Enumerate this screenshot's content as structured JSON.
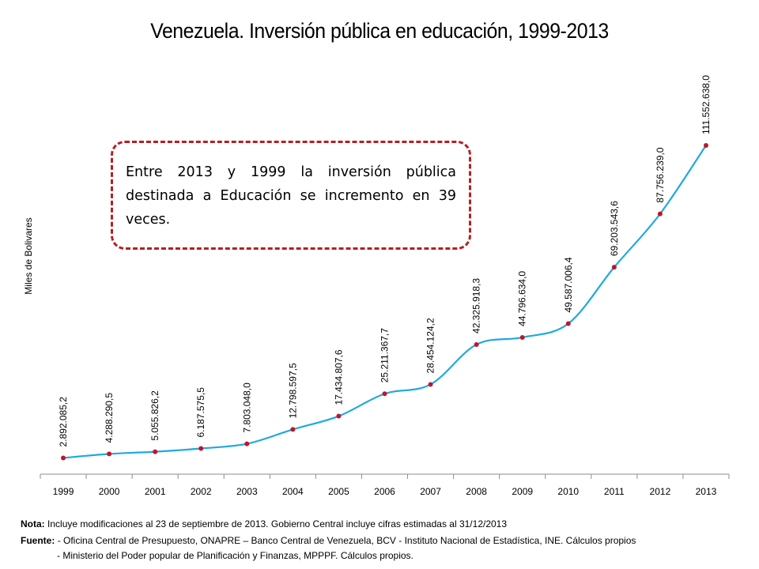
{
  "chart_data": {
    "type": "line",
    "title": "Venezuela. Inversión pública en educación, 1999-2013",
    "ylabel": "Miles de Bolivares",
    "xlabel": "",
    "categories": [
      "1999",
      "2000",
      "2001",
      "2002",
      "2003",
      "2004",
      "2005",
      "2006",
      "2007",
      "2008",
      "2009",
      "2010",
      "2011",
      "2012",
      "2013"
    ],
    "values": [
      2892085.2,
      4288290.5,
      5055826.2,
      6187575.5,
      7803048.0,
      12798597.5,
      17434807.6,
      25211367.7,
      28454124.2,
      42325918.3,
      44796634.0,
      49587006.4,
      69203543.6,
      87756239.0,
      111552638.0
    ],
    "data_labels": [
      "2.892.085,2",
      "4.288.290,5",
      "5.055.826,2",
      "6.187.575,5",
      "7.803.048,0",
      "12.798.597,5",
      "17.434.807,6",
      "25.211.367,7",
      "28.454.124,2",
      "42.325.918,3",
      "44.796.634,0",
      "49.587.006,4",
      "69.203.543,6",
      "87.756.239,0",
      "111.552.638,0"
    ],
    "grid": false,
    "legend": "none",
    "colors": {
      "line": "#1fa9e0",
      "marker": "#c0152a"
    }
  },
  "callout": {
    "text": "Entre 2013 y 1999 la inversión pública destinada a Educación se incremento en 39 veces.",
    "border_color": "#b51f23"
  },
  "footer": {
    "note_label": "Nota:",
    "note_text": "Incluye modificaciones al 23 de septiembre de 2013. Gobierno Central incluye cifras estimadas al 31/12/2013",
    "source_label": "Fuente:",
    "source_line1": "- Oficina Central de Presupuesto, ONAPRE – Banco Central de Venezuela, BCV  - Instituto Nacional de Estadística, INE. Cálculos propios",
    "source_line2": "- Ministerio del Poder popular de Planificación y Finanzas, MPPPF. Cálculos propios."
  }
}
